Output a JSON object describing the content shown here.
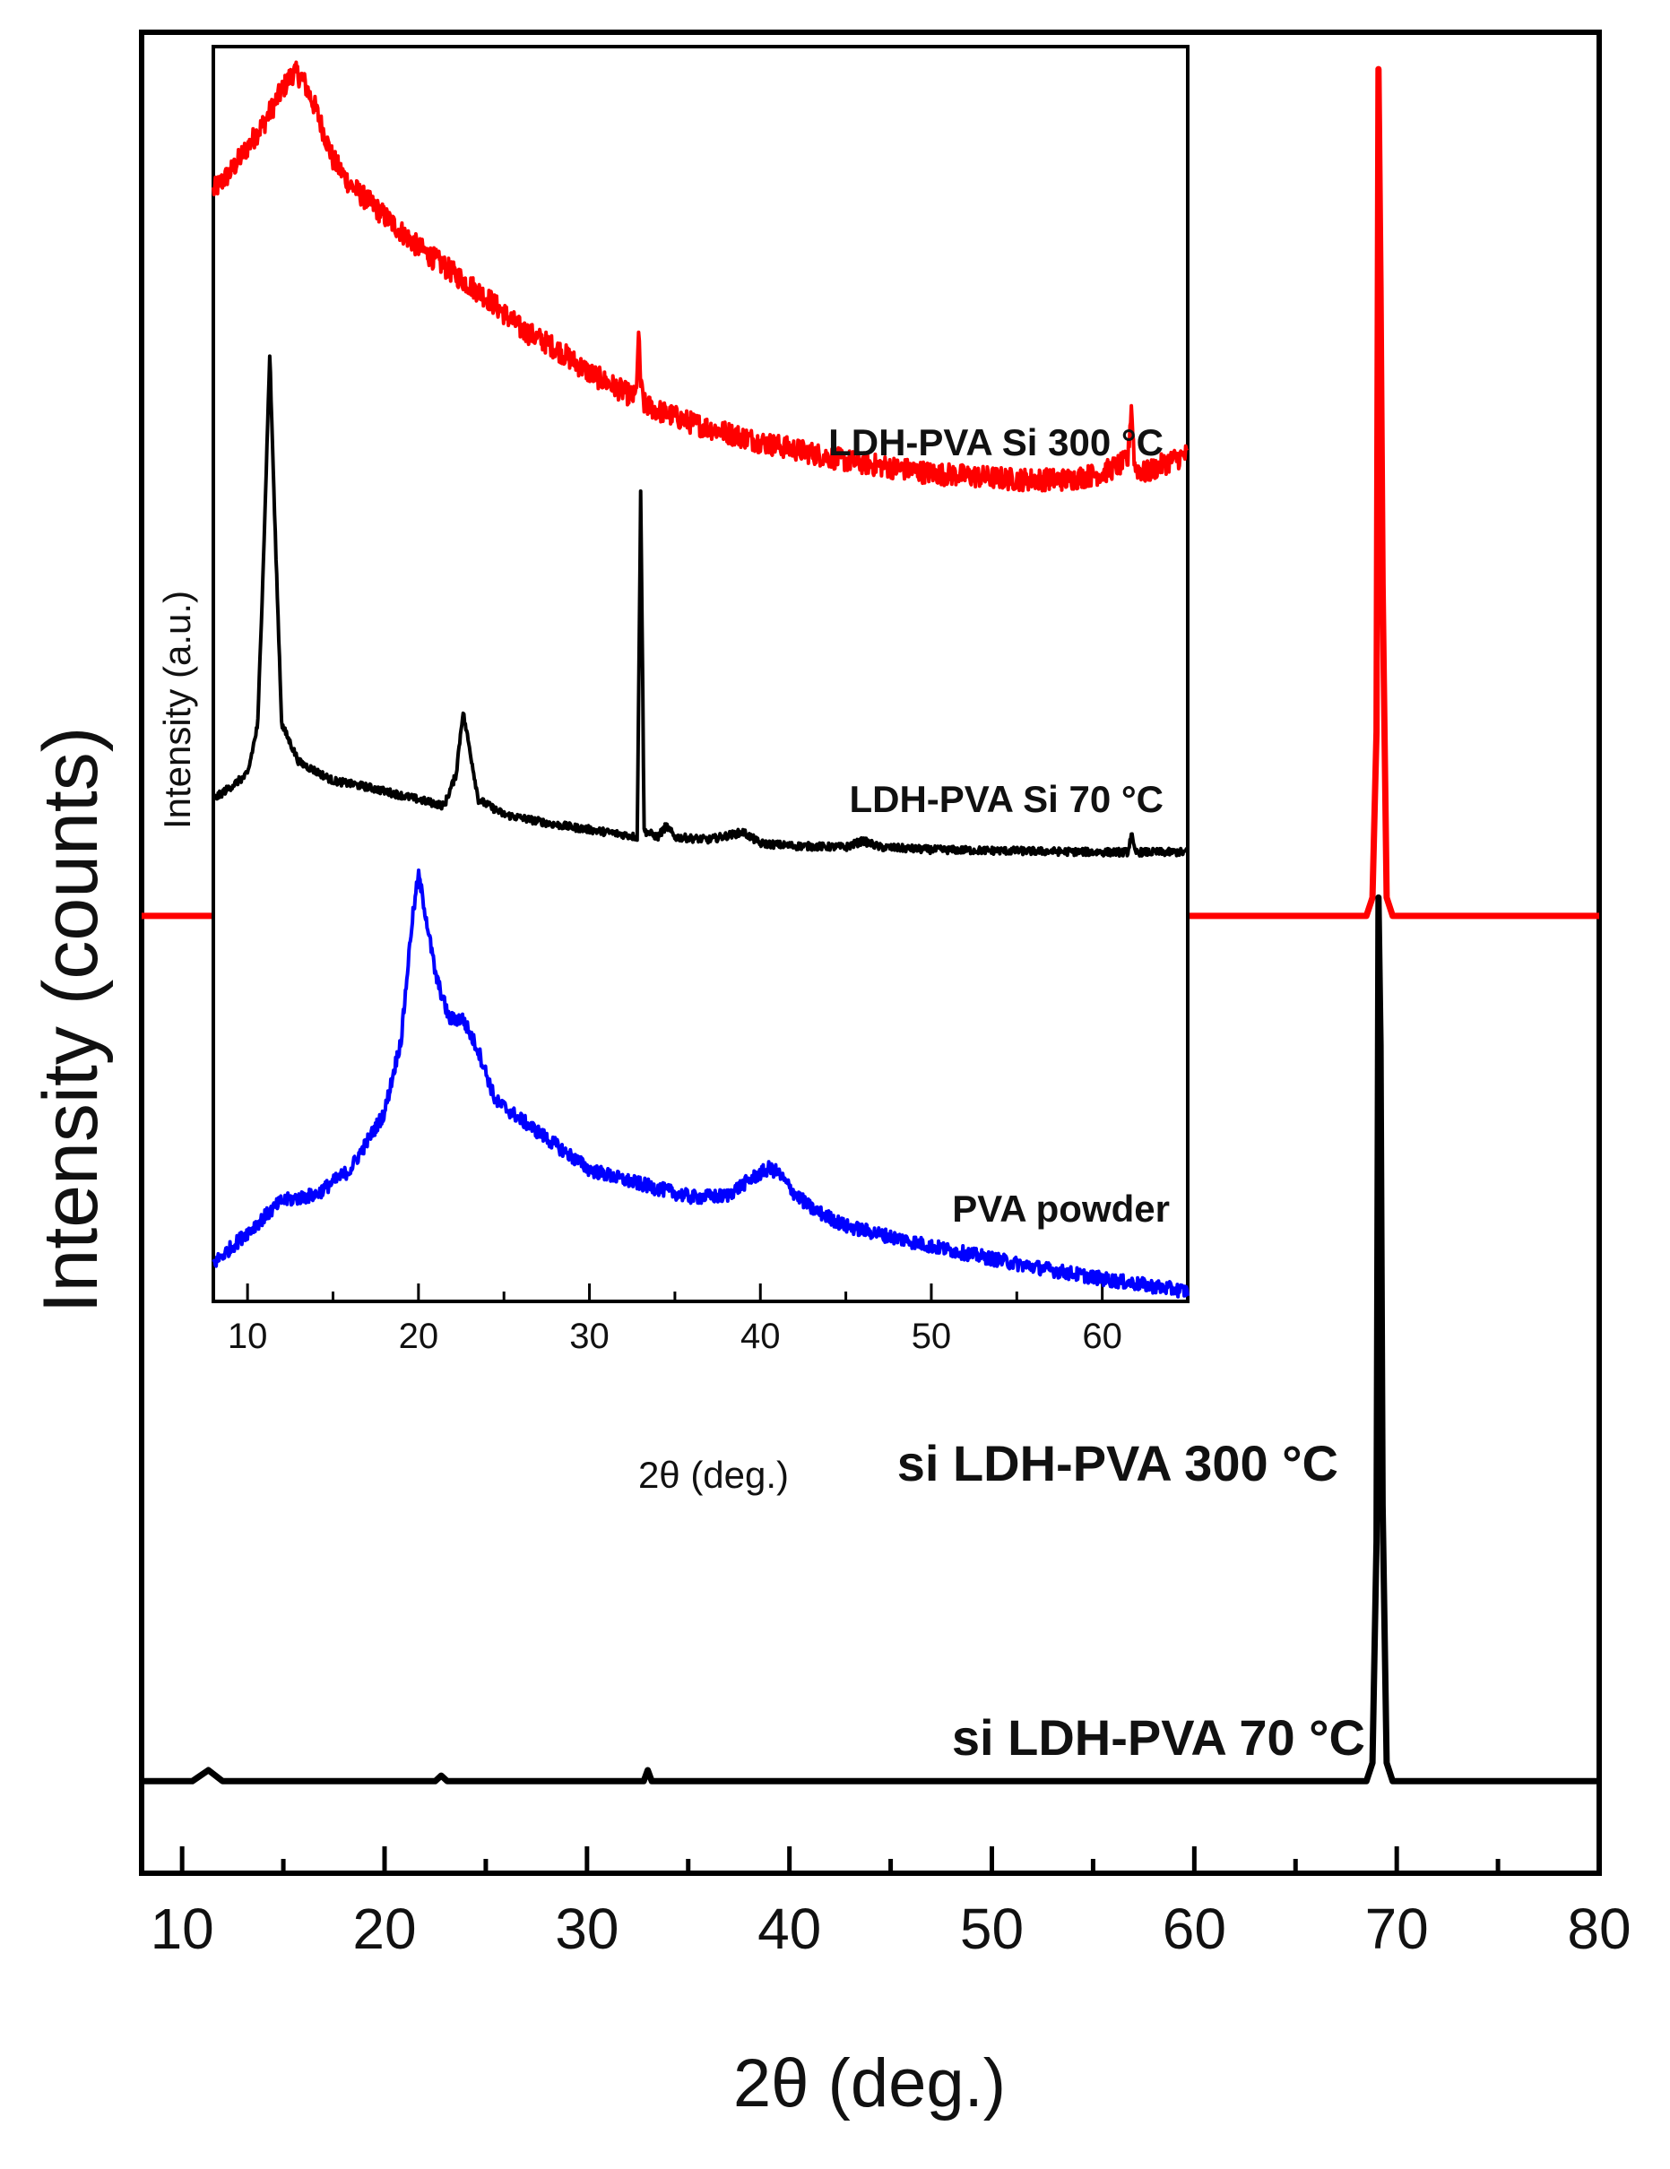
{
  "chart_data": [
    {
      "type": "line",
      "panel": "main",
      "title": "",
      "xlabel": "2θ (deg.)",
      "ylabel": "Intensity (counts)",
      "xlim": [
        8,
        80
      ],
      "ylim": [
        0,
        100
      ],
      "xticks": [
        10,
        20,
        30,
        40,
        50,
        60,
        70,
        80
      ],
      "grid": false,
      "series": [
        {
          "name": "si LDH-PVA  300 °C",
          "label": "si LDH-PVA  300 °C",
          "color": "#ff0000",
          "x": [
            8,
            68.5,
            68.8,
            69.0,
            69.1,
            69.2,
            69.3,
            69.5,
            69.8,
            80
          ],
          "y": [
            52,
            52,
            53,
            62,
            98,
            86,
            70,
            53,
            52,
            52
          ]
        },
        {
          "name": "si LDH-PVA  70 °C",
          "label": "si LDH-PVA  70 °C",
          "color": "#000000",
          "x": [
            8,
            10.5,
            11.3,
            12,
            22.5,
            22.8,
            23.1,
            32.8,
            33.0,
            33.2,
            68.5,
            68.8,
            69.0,
            69.1,
            69.2,
            69.3,
            69.5,
            69.8,
            80
          ],
          "y": [
            5,
            5,
            5.6,
            5,
            5,
            5.3,
            5,
            5,
            5.6,
            5,
            5,
            6,
            18,
            53,
            45,
            20,
            6,
            5,
            5
          ]
        }
      ]
    },
    {
      "type": "line",
      "panel": "inset",
      "title": "",
      "xlabel": "2θ (deg.)",
      "ylabel": "Intensity (a.u.)",
      "xlim": [
        8,
        65
      ],
      "ylim": [
        0,
        100
      ],
      "xticks": [
        10,
        20,
        30,
        40,
        50,
        60
      ],
      "grid": false,
      "series": [
        {
          "name": "LDH-PVA Si 300 °C",
          "label": "LDH-PVA Si 300 °C",
          "color": "#ff0000",
          "x": [
            8,
            9,
            10,
            11,
            12,
            12.7,
            13.2,
            14,
            15,
            16,
            18,
            20,
            22,
            24,
            26,
            28,
            30,
            32,
            32.7,
            32.9,
            33.0,
            33.2,
            34,
            36,
            40,
            45,
            50,
            55,
            58,
            60,
            61.5,
            61.7,
            61.9,
            62.5,
            64,
            65
          ],
          "y": [
            88.5,
            90,
            92,
            94,
            96.5,
            98,
            97.5,
            95,
            91,
            89,
            86.5,
            84,
            82,
            80,
            77.5,
            76,
            74,
            72.5,
            72,
            77,
            73,
            71.5,
            71,
            70,
            68.5,
            67,
            66,
            65.5,
            65.5,
            66,
            67,
            71.5,
            66.5,
            66,
            67,
            67.5
          ],
          "noise": 0.9
        },
        {
          "name": "LDH-PVA Si 70 °C",
          "label": "LDH-PVA Si 70 °C",
          "color": "#000000",
          "x": [
            8,
            9,
            10,
            10.6,
            11.0,
            11.3,
            11.6,
            12.0,
            13,
            15,
            17,
            20,
            21.5,
            22.2,
            22.6,
            23.0,
            23.5,
            25,
            28,
            30,
            32,
            32.8,
            33.0,
            33.2,
            34,
            34.5,
            35,
            37,
            39,
            40,
            42,
            45,
            46,
            47,
            50,
            55,
            60,
            61.5,
            61.7,
            61.9,
            63,
            65
          ],
          "y": [
            40,
            41,
            42,
            46,
            62,
            75.5,
            62,
            46,
            43,
            41.5,
            41,
            40,
            39.5,
            42,
            47,
            44,
            40,
            38.8,
            38,
            37.6,
            37.2,
            37,
            65,
            37.5,
            37,
            37.9,
            37,
            36.8,
            37.4,
            36.5,
            36.3,
            36.2,
            36.7,
            36.2,
            36,
            35.9,
            35.8,
            35.8,
            37.3,
            35.8,
            35.8,
            35.8
          ],
          "noise": 0.3
        },
        {
          "name": "PVA powder",
          "label": "PVA powder",
          "color": "#0000ff",
          "x": [
            8,
            10,
            12,
            14,
            16,
            18,
            19,
            19.6,
            20,
            20.4,
            21,
            21.8,
            22.6,
            23.5,
            24.5,
            26,
            28,
            30,
            32,
            34,
            36,
            38,
            39.5,
            40.5,
            41,
            42,
            43,
            45,
            50,
            55,
            60,
            65
          ],
          "y": [
            3,
            5.5,
            8,
            8.5,
            10.5,
            15,
            21,
            30,
            34,
            31,
            26,
            22.5,
            22.5,
            20,
            16,
            14.5,
            12.5,
            10.5,
            9.7,
            9,
            8.3,
            8.4,
            9.8,
            10.6,
            10.3,
            8.6,
            7.4,
            6,
            4.4,
            3,
            1.8,
            0.8
          ],
          "noise": 0.55
        }
      ]
    }
  ]
}
